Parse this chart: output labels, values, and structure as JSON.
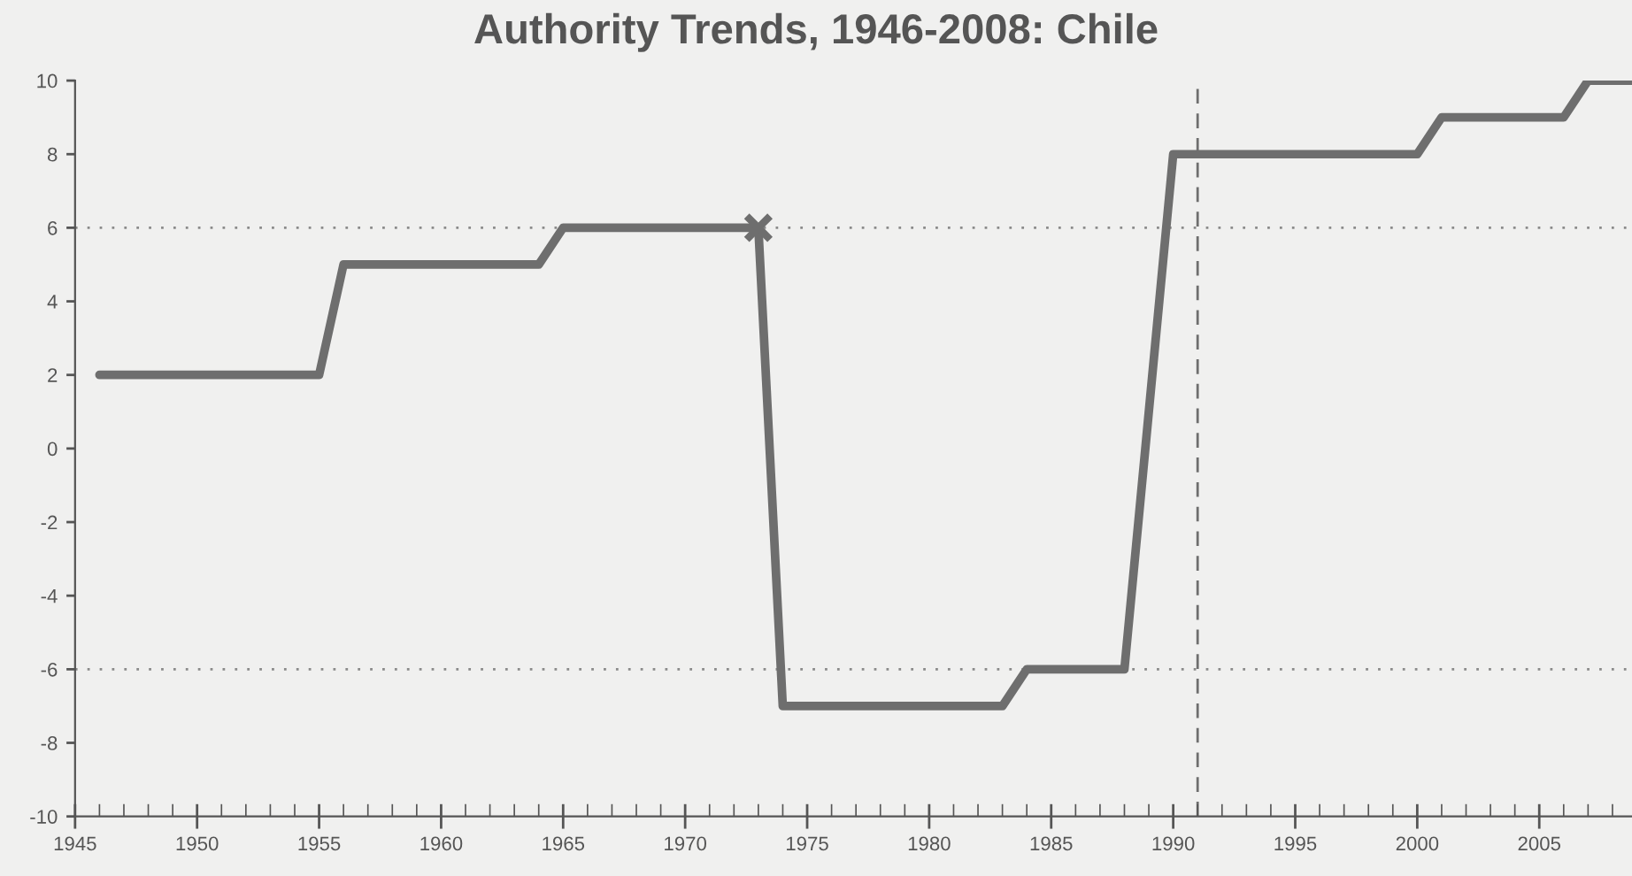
{
  "chart_data": {
    "type": "line",
    "title": "Authority Trends, 1946-2008: Chile",
    "series": [
      {
        "color": "#6e6e6e",
        "x": [
          1946,
          1955,
          1956,
          1964,
          1965,
          1973,
          1974,
          1983,
          1984,
          1988,
          1990,
          2000,
          2001,
          2006,
          2007,
          2008.8
        ],
        "values": [
          2,
          2,
          5,
          5,
          6,
          6,
          -7,
          -7,
          -6,
          -6,
          8,
          8,
          9,
          9,
          10,
          10
        ]
      },
      {
        "type": "scatter",
        "color": "#6e6e6e",
        "marker": "cross",
        "x": [
          1973
        ],
        "values": [
          6
        ]
      }
    ],
    "xlim": [
      1945,
      2008.8
    ],
    "ylim": [
      -10,
      10
    ],
    "xticks": [
      1945,
      1950,
      1955,
      1960,
      1965,
      1970,
      1975,
      1980,
      1985,
      1990,
      1995,
      2000,
      2005
    ],
    "yticks": [
      -10,
      -8,
      -6,
      -4,
      -2,
      0,
      2,
      4,
      6,
      8,
      10
    ],
    "grid": false,
    "legend": false,
    "ref_lines": [
      {
        "axis": "y",
        "value": 6,
        "line_style": "dotted",
        "color": "#8a8a8a"
      },
      {
        "axis": "y",
        "value": -6,
        "line_style": "dotted",
        "color": "#8a8a8a"
      },
      {
        "axis": "x",
        "value": 1991,
        "line_style": "dashed",
        "color": "#6e6e6e"
      }
    ]
  }
}
